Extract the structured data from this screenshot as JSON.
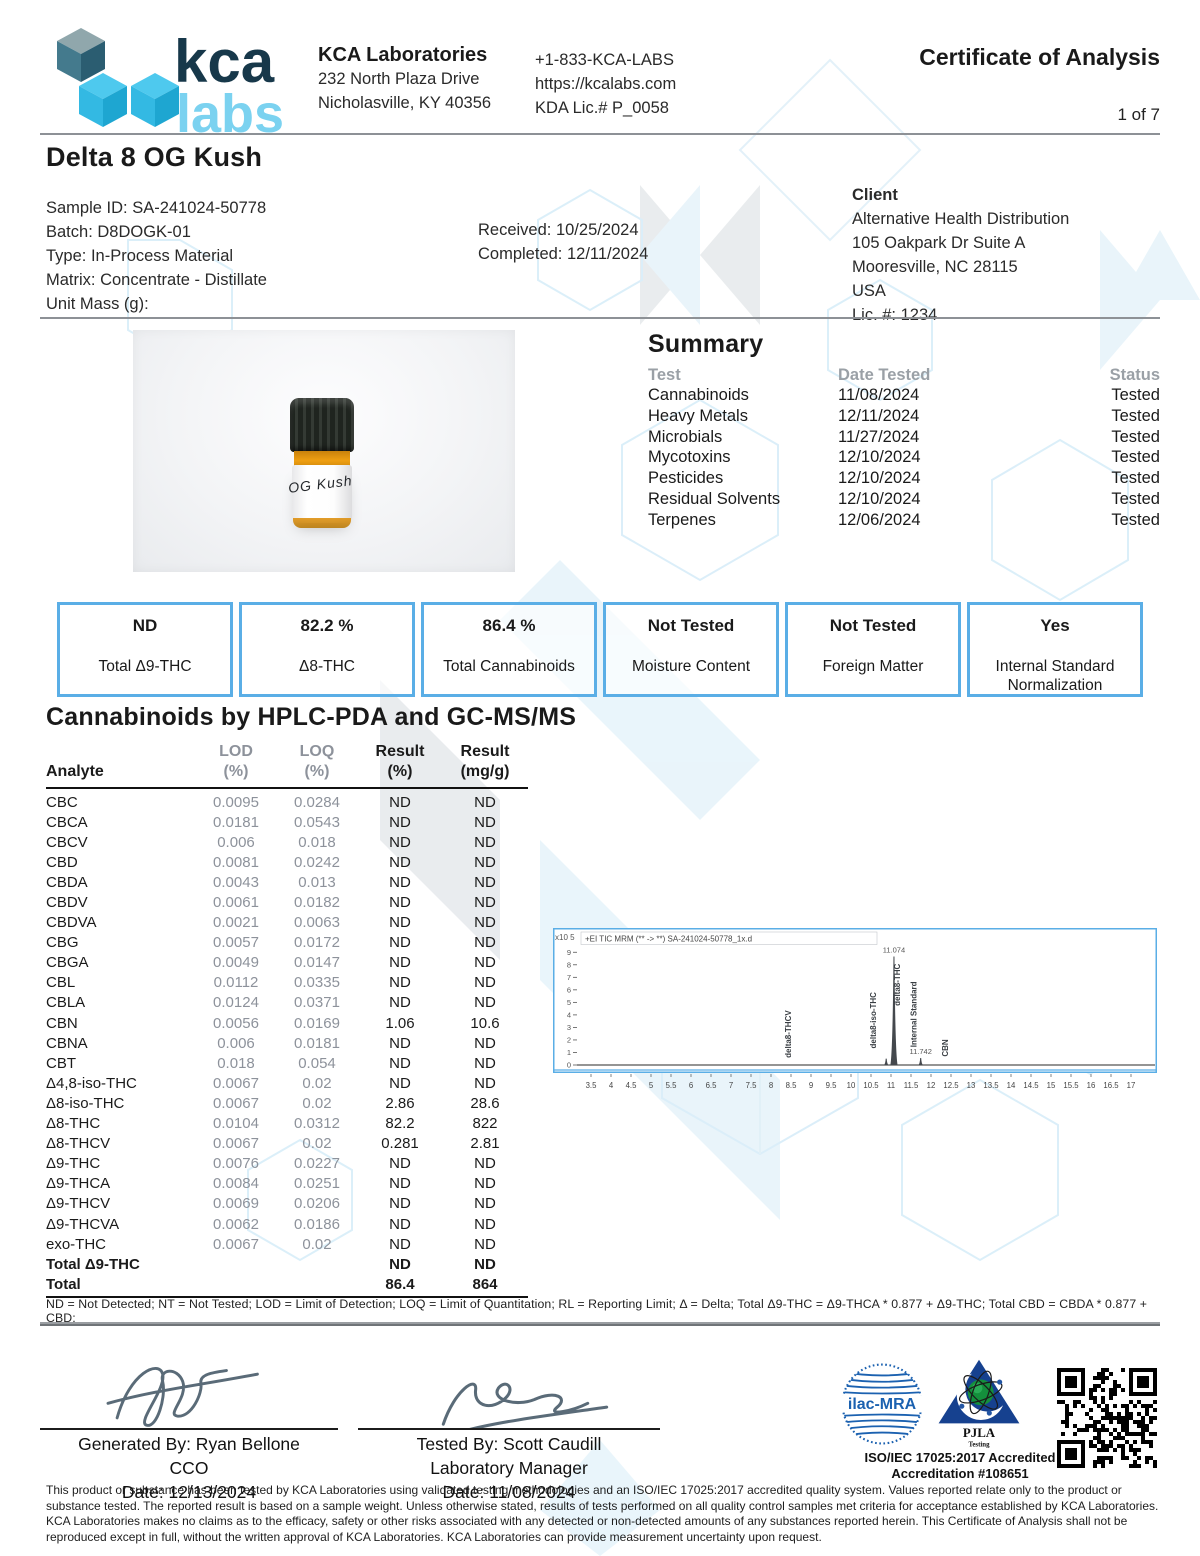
{
  "colors": {
    "accent_blue": "#5aaee6",
    "gray_text": "#8d929b",
    "ink": "#1a1a1a",
    "logo_dark": "#17384a",
    "logo_light": "#7bd2f0",
    "ilac_blue": "#1b61b0",
    "pjla_navy": "#16418f"
  },
  "header": {
    "logo_word_top": "kca",
    "logo_word_bottom": "labs",
    "company": "KCA Laboratories",
    "address1": "232 North Plaza Drive",
    "address2": "Nicholasville, KY 40356",
    "phone": "+1-833-KCA-LABS",
    "website": "https://kcalabs.com",
    "license": "KDA Lic.# P_0058",
    "doc_title": "Certificate of Analysis",
    "page": "1 of 7"
  },
  "sample": {
    "product_name": "Delta 8 OG Kush",
    "lines": [
      "Sample ID: SA-241024-50778",
      "Batch: D8DOGK-01",
      "Type: In-Process Material",
      "Matrix: Concentrate - Distillate",
      "Unit Mass (g):"
    ],
    "received": "Received: 10/25/2024",
    "completed": "Completed: 12/11/2024"
  },
  "client": {
    "heading": "Client",
    "lines": [
      "Alternative Health Distribution",
      "105 Oakpark Dr Suite A",
      "Mooresville, NC 28115",
      "USA",
      "Lic. #: 1234"
    ]
  },
  "photo": {
    "label_text": "OG Kush"
  },
  "summary": {
    "title": "Summary",
    "headers": {
      "test": "Test",
      "date": "Date Tested",
      "status": "Status"
    },
    "rows": [
      {
        "test": "Cannabinoids",
        "date": "11/08/2024",
        "status": "Tested"
      },
      {
        "test": "Heavy Metals",
        "date": "12/11/2024",
        "status": "Tested"
      },
      {
        "test": "Microbials",
        "date": "11/27/2024",
        "status": "Tested"
      },
      {
        "test": "Mycotoxins",
        "date": "12/10/2024",
        "status": "Tested"
      },
      {
        "test": "Pesticides",
        "date": "12/10/2024",
        "status": "Tested"
      },
      {
        "test": "Residual Solvents",
        "date": "12/10/2024",
        "status": "Tested"
      },
      {
        "test": "Terpenes",
        "date": "12/06/2024",
        "status": "Tested"
      }
    ]
  },
  "result_boxes": [
    {
      "value": "ND",
      "label": "Total Δ9-THC"
    },
    {
      "value": "82.2 %",
      "label": "Δ8-THC"
    },
    {
      "value": "86.4 %",
      "label": "Total Cannabinoids"
    },
    {
      "value": "Not Tested",
      "label": "Moisture Content"
    },
    {
      "value": "Not Tested",
      "label": "Foreign Matter"
    },
    {
      "value": "Yes",
      "label": "Internal Standard Normalization"
    }
  ],
  "section_title": "Cannabinoids by HPLC-PDA and GC-MS/MS",
  "table": {
    "headers": [
      {
        "l1": "Analyte",
        "l2": "",
        "gray": false
      },
      {
        "l1": "LOD",
        "l2": "(%)",
        "gray": true
      },
      {
        "l1": "LOQ",
        "l2": "(%)",
        "gray": true
      },
      {
        "l1": "Result",
        "l2": "(%)",
        "gray": false
      },
      {
        "l1": "Result",
        "l2": "(mg/g)",
        "gray": false
      }
    ],
    "rows": [
      {
        "analyte": "CBC",
        "lod": "0.0095",
        "loq": "0.0284",
        "result_pct": "ND",
        "result_mgg": "ND",
        "bold": false
      },
      {
        "analyte": "CBCA",
        "lod": "0.0181",
        "loq": "0.0543",
        "result_pct": "ND",
        "result_mgg": "ND",
        "bold": false
      },
      {
        "analyte": "CBCV",
        "lod": "0.006",
        "loq": "0.018",
        "result_pct": "ND",
        "result_mgg": "ND",
        "bold": false
      },
      {
        "analyte": "CBD",
        "lod": "0.0081",
        "loq": "0.0242",
        "result_pct": "ND",
        "result_mgg": "ND",
        "bold": false
      },
      {
        "analyte": "CBDA",
        "lod": "0.0043",
        "loq": "0.013",
        "result_pct": "ND",
        "result_mgg": "ND",
        "bold": false
      },
      {
        "analyte": "CBDV",
        "lod": "0.0061",
        "loq": "0.0182",
        "result_pct": "ND",
        "result_mgg": "ND",
        "bold": false
      },
      {
        "analyte": "CBDVA",
        "lod": "0.0021",
        "loq": "0.0063",
        "result_pct": "ND",
        "result_mgg": "ND",
        "bold": false
      },
      {
        "analyte": "CBG",
        "lod": "0.0057",
        "loq": "0.0172",
        "result_pct": "ND",
        "result_mgg": "ND",
        "bold": false
      },
      {
        "analyte": "CBGA",
        "lod": "0.0049",
        "loq": "0.0147",
        "result_pct": "ND",
        "result_mgg": "ND",
        "bold": false
      },
      {
        "analyte": "CBL",
        "lod": "0.0112",
        "loq": "0.0335",
        "result_pct": "ND",
        "result_mgg": "ND",
        "bold": false
      },
      {
        "analyte": "CBLA",
        "lod": "0.0124",
        "loq": "0.0371",
        "result_pct": "ND",
        "result_mgg": "ND",
        "bold": false
      },
      {
        "analyte": "CBN",
        "lod": "0.0056",
        "loq": "0.0169",
        "result_pct": "1.06",
        "result_mgg": "10.6",
        "bold": false
      },
      {
        "analyte": "CBNA",
        "lod": "0.006",
        "loq": "0.0181",
        "result_pct": "ND",
        "result_mgg": "ND",
        "bold": false
      },
      {
        "analyte": "CBT",
        "lod": "0.018",
        "loq": "0.054",
        "result_pct": "ND",
        "result_mgg": "ND",
        "bold": false
      },
      {
        "analyte": "Δ4,8-iso-THC",
        "lod": "0.0067",
        "loq": "0.02",
        "result_pct": "ND",
        "result_mgg": "ND",
        "bold": false
      },
      {
        "analyte": "Δ8-iso-THC",
        "lod": "0.0067",
        "loq": "0.02",
        "result_pct": "2.86",
        "result_mgg": "28.6",
        "bold": false
      },
      {
        "analyte": "Δ8-THC",
        "lod": "0.0104",
        "loq": "0.0312",
        "result_pct": "82.2",
        "result_mgg": "822",
        "bold": false
      },
      {
        "analyte": "Δ8-THCV",
        "lod": "0.0067",
        "loq": "0.02",
        "result_pct": "0.281",
        "result_mgg": "2.81",
        "bold": false
      },
      {
        "analyte": "Δ9-THC",
        "lod": "0.0076",
        "loq": "0.0227",
        "result_pct": "ND",
        "result_mgg": "ND",
        "bold": false
      },
      {
        "analyte": "Δ9-THCA",
        "lod": "0.0084",
        "loq": "0.0251",
        "result_pct": "ND",
        "result_mgg": "ND",
        "bold": false
      },
      {
        "analyte": "Δ9-THCV",
        "lod": "0.0069",
        "loq": "0.0206",
        "result_pct": "ND",
        "result_mgg": "ND",
        "bold": false
      },
      {
        "analyte": "Δ9-THCVA",
        "lod": "0.0062",
        "loq": "0.0186",
        "result_pct": "ND",
        "result_mgg": "ND",
        "bold": false
      },
      {
        "analyte": "exo-THC",
        "lod": "0.0067",
        "loq": "0.02",
        "result_pct": "ND",
        "result_mgg": "ND",
        "bold": false
      },
      {
        "analyte": "Total Δ9-THC",
        "lod": "",
        "loq": "",
        "result_pct": "ND",
        "result_mgg": "ND",
        "bold": true
      },
      {
        "analyte": "Total",
        "lod": "",
        "loq": "",
        "result_pct": "86.4",
        "result_mgg": "864",
        "bold": true
      }
    ]
  },
  "chart_data": {
    "type": "line",
    "title": "+EI TIC MRM (** -> **) SA-241024-50778_1x.d",
    "y_scale_label": "x10 5",
    "x_range": [
      3.2,
      17.4
    ],
    "y_max": 9.5,
    "y_ticks": [
      0,
      1,
      2,
      3,
      4,
      5,
      6,
      7,
      8,
      9
    ],
    "x_ticks": [
      3.5,
      4,
      4.5,
      5,
      5.5,
      6,
      6.5,
      7,
      7.5,
      8,
      8.5,
      9,
      9.5,
      10,
      10.5,
      11,
      11.5,
      12,
      12.5,
      13,
      13.5,
      14,
      14.5,
      15,
      15.5,
      16,
      16.5,
      17
    ],
    "peaks": [
      {
        "x": 8.5,
        "y": 0,
        "label": "delta8-THCV",
        "label_bottom": 0.25,
        "label_dx": 0
      },
      {
        "x": 10.88,
        "y": 0.55,
        "label": "delta8-iso-THC",
        "label_bottom": 1.0,
        "label_dx": -10
      },
      {
        "x": 11.074,
        "y": 8.7,
        "label": "delta8-THC",
        "annotation": "11.074",
        "label_bottom": 4.4,
        "label_dx": 6
      },
      {
        "x": 11.742,
        "y": 0.6,
        "label": "Internal Standard",
        "annotation": "11.742",
        "label_bottom": 1.1,
        "label_dx": -4
      },
      {
        "x": 12.42,
        "y": 0,
        "label": "CBN",
        "label_bottom": 0.35,
        "label_dx": 0
      }
    ]
  },
  "footnote": "ND = Not Detected; NT = Not Tested; LOD = Limit of Detection; LOQ = Limit of Quantitation; RL = Reporting Limit; Δ = Delta; Total Δ9-THC = Δ9-THCA * 0.877 + Δ9-THC; Total CBD = CBDA * 0.877 + CBD;",
  "signatures": {
    "generated_by": "Generated By: Ryan Bellone",
    "generated_title": "CCO",
    "generated_date": "Date: 12/13/2024",
    "tested_by": "Tested By: Scott Caudill",
    "tested_title": "Laboratory Manager",
    "tested_date": "Date: 11/08/2024"
  },
  "accreditation": {
    "ilac_text": "ilac-MRA",
    "pjla_text": "PJLA",
    "pjla_sub": "Testing",
    "line1": "ISO/IEC 17025:2017 Accredited",
    "line2": "Accreditation #108651"
  },
  "disclaimer": "This product or substance has been tested by KCA Laboratories using validated testing methodologies and an ISO/IEC 17025:2017 accredited quality system. Values reported relate only to the product or substance tested. The reported result is based on a sample weight. Unless otherwise stated, results of tests performed on all quality control samples met criteria for acceptance established by KCA Laboratories. KCA Laboratories makes no claims as to the efficacy, safety or other risks associated with any detected or non-detected amounts of any substances reported herein. This Certificate of Analysis shall not be reproduced except in full, without the written approval of KCA Laboratories. KCA Laboratories can provide measurement uncertainty upon request."
}
